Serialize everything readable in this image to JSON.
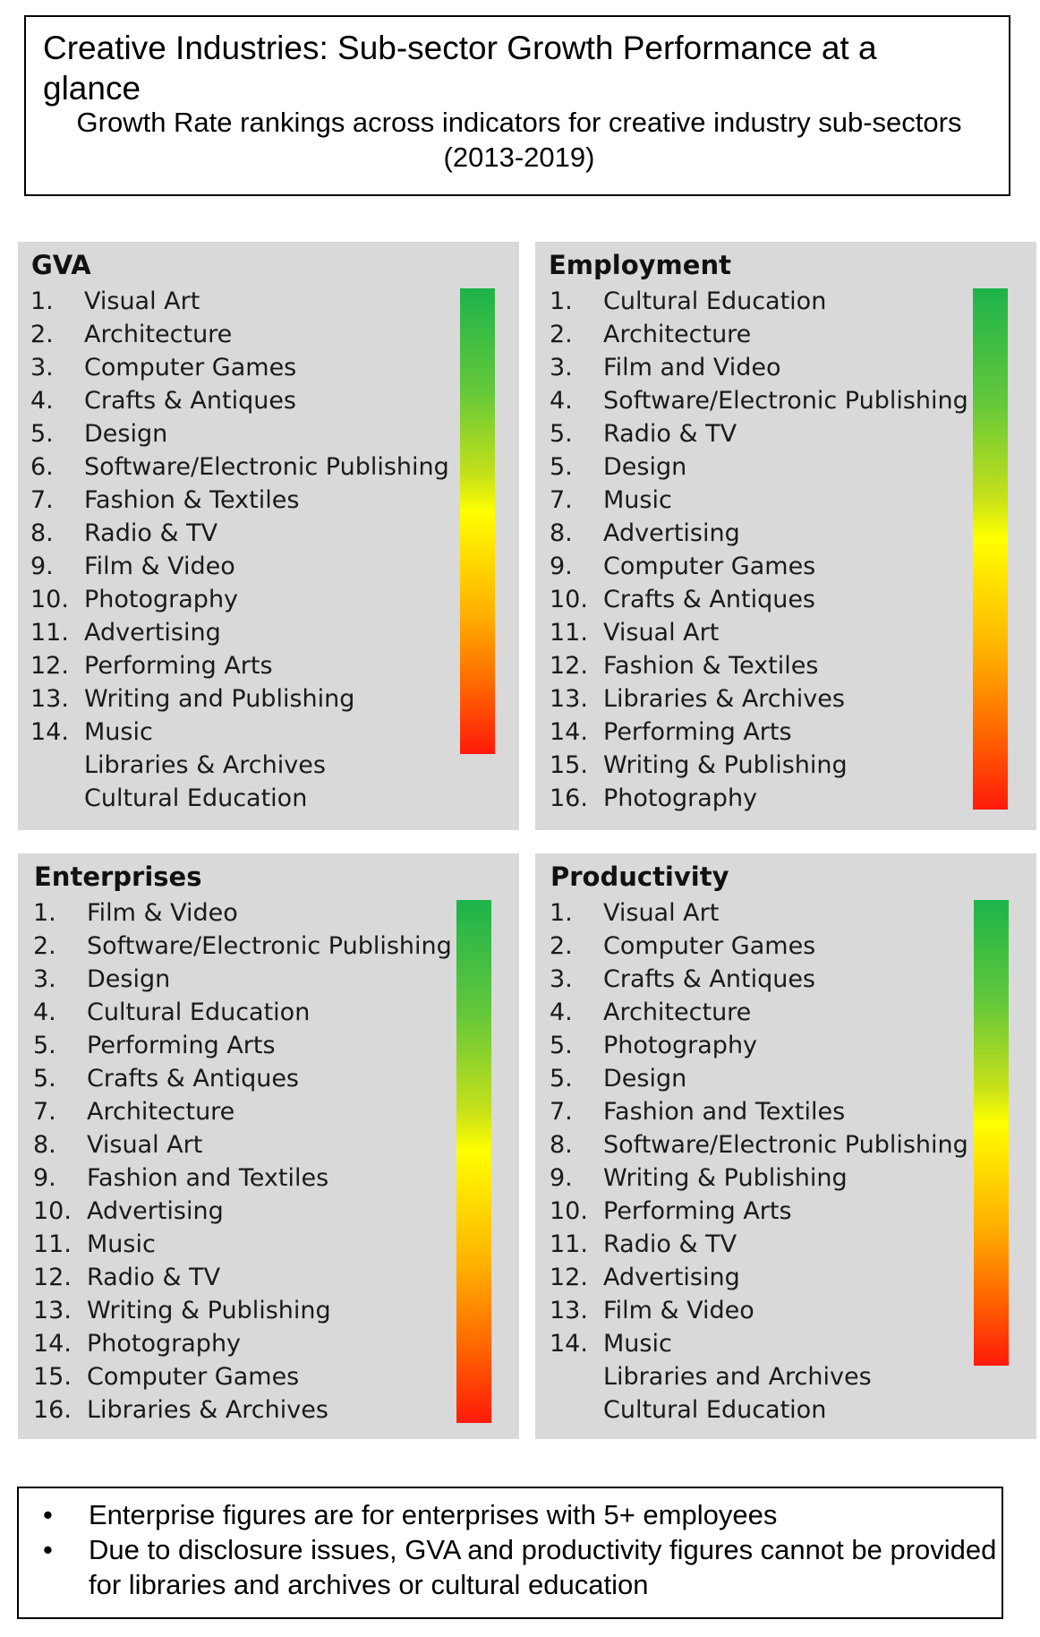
{
  "header": {
    "title": "Creative Industries: Sub-sector Growth Performance at a glance",
    "subtitle": "Growth Rate rankings across indicators for creative industry sub-sectors (2013-2019)"
  },
  "scale": {
    "colors": [
      "#1db34b",
      "#ffff00",
      "#ff1a0a"
    ]
  },
  "panels": {
    "gva": {
      "title": "GVA",
      "items": [
        {
          "rank": "1.",
          "label": "Visual Art"
        },
        {
          "rank": "2.",
          "label": "Architecture"
        },
        {
          "rank": "3.",
          "label": "Computer Games"
        },
        {
          "rank": "4.",
          "label": "Crafts & Antiques"
        },
        {
          "rank": "5.",
          "label": "Design"
        },
        {
          "rank": "6.",
          "label": "Software/Electronic Publishing"
        },
        {
          "rank": "7.",
          "label": "Fashion & Textiles"
        },
        {
          "rank": "8.",
          "label": "Radio & TV"
        },
        {
          "rank": "9.",
          "label": "Film & Video"
        },
        {
          "rank": "10.",
          "label": "Photography"
        },
        {
          "rank": "11.",
          "label": "Advertising"
        },
        {
          "rank": "12.",
          "label": "Performing Arts"
        },
        {
          "rank": "13.",
          "label": "Writing and Publishing"
        },
        {
          "rank": "14.",
          "label": "Music"
        },
        {
          "rank": "",
          "label": "Libraries & Archives"
        },
        {
          "rank": "",
          "label": "Cultural Education"
        }
      ]
    },
    "employment": {
      "title": "Employment",
      "items": [
        {
          "rank": "1.",
          "label": "Cultural Education"
        },
        {
          "rank": "2.",
          "label": "Architecture"
        },
        {
          "rank": "3.",
          "label": "Film and Video"
        },
        {
          "rank": "4.",
          "label": "Software/Electronic Publishing"
        },
        {
          "rank": "5.",
          "label": "Radio & TV"
        },
        {
          "rank": "5.",
          "label": "Design"
        },
        {
          "rank": "7.",
          "label": "Music"
        },
        {
          "rank": "8.",
          "label": "Advertising"
        },
        {
          "rank": "9.",
          "label": "Computer Games"
        },
        {
          "rank": "10.",
          "label": "Crafts & Antiques"
        },
        {
          "rank": "11.",
          "label": "Visual Art"
        },
        {
          "rank": "12.",
          "label": "Fashion & Textiles"
        },
        {
          "rank": "13.",
          "label": "Libraries & Archives"
        },
        {
          "rank": "14.",
          "label": "Performing Arts"
        },
        {
          "rank": "15.",
          "label": "Writing & Publishing"
        },
        {
          "rank": "16.",
          "label": "Photography"
        }
      ]
    },
    "enterprises": {
      "title": "Enterprises",
      "items": [
        {
          "rank": "1.",
          "label": "Film & Video"
        },
        {
          "rank": "2.",
          "label": "Software/Electronic Publishing"
        },
        {
          "rank": "3.",
          "label": "Design"
        },
        {
          "rank": "4.",
          "label": "Cultural Education"
        },
        {
          "rank": "5.",
          "label": "Performing Arts"
        },
        {
          "rank": "5.",
          "label": "Crafts & Antiques"
        },
        {
          "rank": "7.",
          "label": "Architecture"
        },
        {
          "rank": "8.",
          "label": "Visual Art"
        },
        {
          "rank": "9.",
          "label": "Fashion and Textiles"
        },
        {
          "rank": "10.",
          "label": "Advertising"
        },
        {
          "rank": "11.",
          "label": "Music"
        },
        {
          "rank": "12.",
          "label": "Radio & TV"
        },
        {
          "rank": "13.",
          "label": "Writing & Publishing"
        },
        {
          "rank": "14.",
          "label": "Photography"
        },
        {
          "rank": "15.",
          "label": "Computer Games"
        },
        {
          "rank": "16.",
          "label": "Libraries & Archives"
        }
      ]
    },
    "productivity": {
      "title": "Productivity",
      "items": [
        {
          "rank": "1.",
          "label": "Visual Art"
        },
        {
          "rank": "2.",
          "label": "Computer Games"
        },
        {
          "rank": "3.",
          "label": "Crafts & Antiques"
        },
        {
          "rank": "4.",
          "label": "Architecture"
        },
        {
          "rank": "5.",
          "label": "Photography"
        },
        {
          "rank": "5.",
          "label": "Design"
        },
        {
          "rank": "7.",
          "label": "Fashion and Textiles"
        },
        {
          "rank": "8.",
          "label": "Software/Electronic Publishing"
        },
        {
          "rank": "9.",
          "label": "Writing & Publishing"
        },
        {
          "rank": "10.",
          "label": "Performing Arts"
        },
        {
          "rank": "11.",
          "label": "Radio & TV"
        },
        {
          "rank": "12.",
          "label": "Advertising"
        },
        {
          "rank": "13.",
          "label": "Film & Video"
        },
        {
          "rank": "14.",
          "label": "Music"
        },
        {
          "rank": "",
          "label": "Libraries and Archives"
        },
        {
          "rank": "",
          "label": "Cultural Education"
        }
      ]
    }
  },
  "notes": {
    "bullet": "•",
    "items": [
      "Enterprise figures are for enterprises with 5+ employees",
      "Due to disclosure issues, GVA and productivity figures cannot be provided for libraries and archives or cultural education"
    ]
  }
}
